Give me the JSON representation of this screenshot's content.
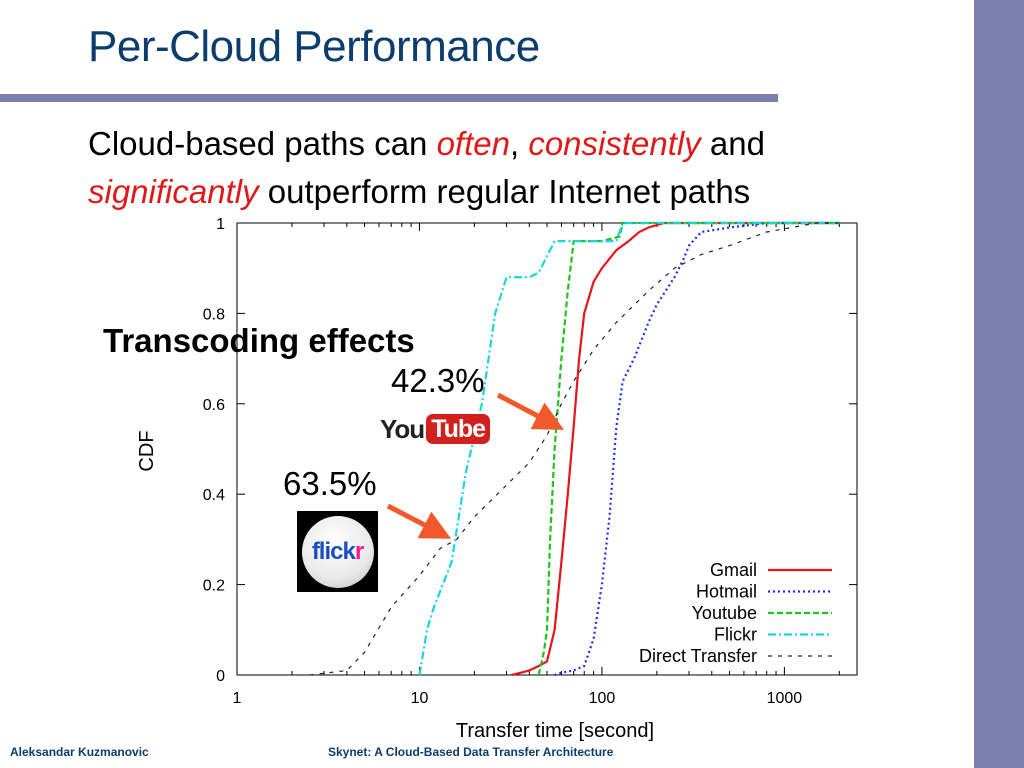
{
  "slide": {
    "title": "Per-Cloud Performance",
    "subtitle": {
      "part1": "Cloud-based paths can ",
      "em1": "often",
      "sep": ", ",
      "em2": "consistently",
      "part2": " and",
      "em3": "significantly",
      "part3": " outperform regular Internet paths"
    },
    "footer": {
      "author": "Aleksandar Kuzmanovic",
      "talk": "Skynet: A Cloud-Based Data Transfer Architecture"
    },
    "colors": {
      "sidebar": "#7b7fae",
      "rule": "#7b7fae",
      "title": "#0b3d6e",
      "emphasis": "#e01818",
      "arrow": "#f05a2a"
    }
  },
  "annotations": {
    "heading": "Transcoding effects",
    "youtube_pct": "42.3%",
    "flickr_pct": "63.5%",
    "youtube_logo": {
      "you": "You",
      "tube": "Tube"
    },
    "flickr_logo": {
      "text": "flick",
      "accent": "r"
    }
  },
  "chart_data": {
    "type": "line",
    "title": "",
    "xlabel": "Transfer time [second]",
    "ylabel": "CDF",
    "xscale": "log",
    "xlim": [
      1,
      2500
    ],
    "ylim": [
      0,
      1
    ],
    "xticks": [
      1,
      10,
      100,
      1000
    ],
    "xtick_labels": [
      "1",
      "10",
      "100",
      "1000"
    ],
    "yticks": [
      0,
      0.2,
      0.4,
      0.6,
      0.8,
      1
    ],
    "ytick_labels": [
      "0",
      "0.2",
      "0.4",
      "0.6",
      "0.8",
      "1"
    ],
    "grid": false,
    "legend_position": "bottom-right",
    "series": [
      {
        "name": "Gmail",
        "color": "#e8141c",
        "dash": "solid",
        "points": [
          [
            32,
            0
          ],
          [
            36,
            0.005
          ],
          [
            40,
            0.01
          ],
          [
            45,
            0.02
          ],
          [
            50,
            0.03
          ],
          [
            55,
            0.1
          ],
          [
            60,
            0.25
          ],
          [
            65,
            0.4
          ],
          [
            70,
            0.55
          ],
          [
            75,
            0.7
          ],
          [
            80,
            0.8
          ],
          [
            90,
            0.87
          ],
          [
            100,
            0.9
          ],
          [
            120,
            0.94
          ],
          [
            140,
            0.96
          ],
          [
            160,
            0.98
          ],
          [
            180,
            0.99
          ],
          [
            220,
            1
          ],
          [
            2000,
            1
          ]
        ]
      },
      {
        "name": "Hotmail",
        "color": "#1c2ee8",
        "dash": "dotted",
        "points": [
          [
            55,
            0
          ],
          [
            60,
            0.005
          ],
          [
            70,
            0.01
          ],
          [
            80,
            0.02
          ],
          [
            90,
            0.08
          ],
          [
            100,
            0.2
          ],
          [
            110,
            0.35
          ],
          [
            120,
            0.55
          ],
          [
            130,
            0.65
          ],
          [
            150,
            0.7
          ],
          [
            180,
            0.78
          ],
          [
            200,
            0.82
          ],
          [
            250,
            0.88
          ],
          [
            280,
            0.92
          ],
          [
            300,
            0.95
          ],
          [
            350,
            0.98
          ],
          [
            500,
            0.99
          ],
          [
            800,
            1
          ],
          [
            2000,
            1
          ]
        ]
      },
      {
        "name": "Youtube",
        "color": "#1ec41e",
        "dash": "dashed",
        "points": [
          [
            45,
            0
          ],
          [
            48,
            0.05
          ],
          [
            50,
            0.1
          ],
          [
            52,
            0.3
          ],
          [
            55,
            0.5
          ],
          [
            60,
            0.7
          ],
          [
            65,
            0.85
          ],
          [
            70,
            0.96
          ],
          [
            100,
            0.96
          ],
          [
            125,
            0.97
          ],
          [
            130,
            1
          ],
          [
            2000,
            1
          ]
        ]
      },
      {
        "name": "Flickr",
        "color": "#18d4e0",
        "dash": "dashdot",
        "points": [
          [
            10,
            0
          ],
          [
            10.5,
            0.05
          ],
          [
            11,
            0.1
          ],
          [
            12,
            0.15
          ],
          [
            15,
            0.25
          ],
          [
            18,
            0.45
          ],
          [
            22,
            0.6
          ],
          [
            26,
            0.8
          ],
          [
            30,
            0.88
          ],
          [
            40,
            0.88
          ],
          [
            45,
            0.89
          ],
          [
            55,
            0.96
          ],
          [
            80,
            0.96
          ],
          [
            120,
            0.96
          ],
          [
            130,
            1
          ],
          [
            2000,
            1
          ]
        ]
      },
      {
        "name": "Direct Transfer",
        "color": "#222222",
        "dash": "longdash",
        "points": [
          [
            2.5,
            0
          ],
          [
            4,
            0.01
          ],
          [
            5,
            0.05
          ],
          [
            7,
            0.15
          ],
          [
            10,
            0.22
          ],
          [
            13,
            0.28
          ],
          [
            16,
            0.3
          ],
          [
            20,
            0.35
          ],
          [
            30,
            0.42
          ],
          [
            40,
            0.47
          ],
          [
            50,
            0.53
          ],
          [
            60,
            0.6
          ],
          [
            70,
            0.65
          ],
          [
            90,
            0.72
          ],
          [
            120,
            0.78
          ],
          [
            180,
            0.85
          ],
          [
            250,
            0.9
          ],
          [
            350,
            0.93
          ],
          [
            500,
            0.95
          ],
          [
            800,
            0.98
          ],
          [
            1500,
            1
          ],
          [
            2000,
            1
          ]
        ]
      }
    ]
  }
}
